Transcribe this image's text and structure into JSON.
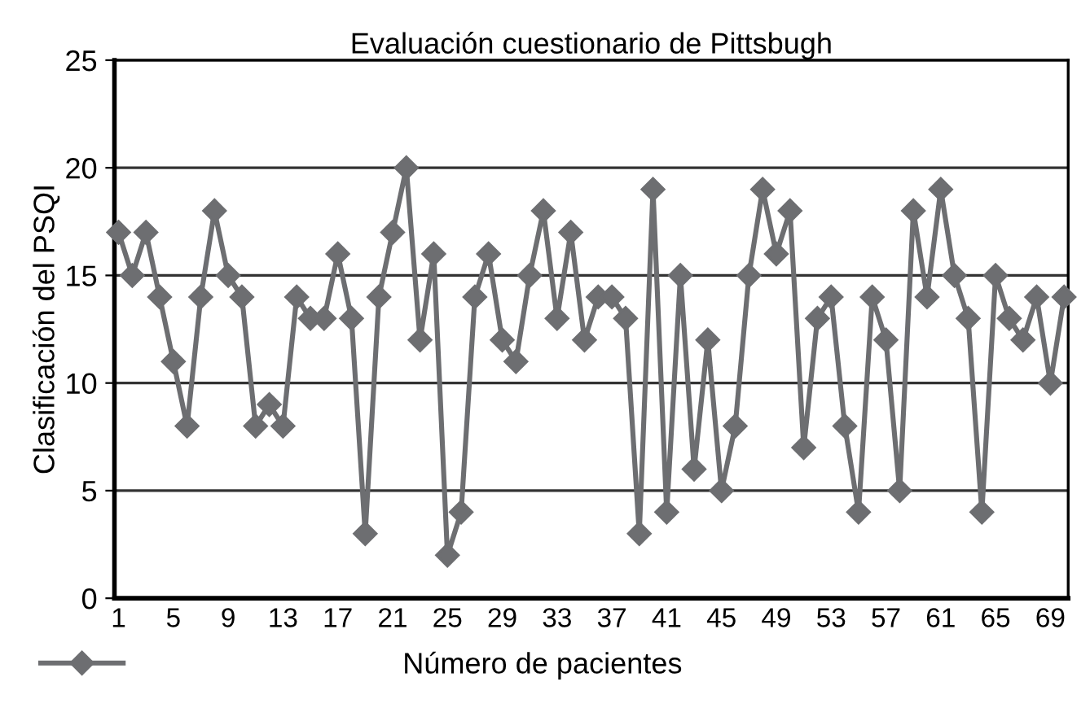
{
  "chart_data": {
    "type": "line",
    "title": "Evaluación cuestionario de Pittsbugh",
    "ylabel": "Clasificación del PSQI",
    "categories": [
      "1",
      null,
      null,
      null,
      "5",
      null,
      null,
      null,
      "9",
      null,
      null,
      null,
      "13",
      null,
      null,
      null,
      "17",
      null,
      null,
      null,
      "21",
      null,
      null,
      null,
      "25",
      null,
      null,
      null,
      "29",
      null,
      null,
      null,
      "33",
      null,
      null,
      null,
      "37",
      null,
      null,
      null,
      "41",
      null,
      null,
      null,
      "45",
      null,
      null,
      null,
      "49",
      null,
      null,
      null,
      "53",
      null,
      null,
      null,
      "57",
      null,
      null,
      null,
      "61",
      null,
      null,
      null,
      "65",
      null,
      null,
      null,
      "69",
      null
    ],
    "series": [
      {
        "name": "Número de pacientes",
        "color": "#6d6e71",
        "values": [
          17,
          15,
          17,
          14,
          11,
          8,
          14,
          18,
          15,
          14,
          8,
          9,
          8,
          14,
          13,
          13,
          16,
          13,
          3,
          14,
          17,
          20,
          12,
          16,
          2,
          4,
          14,
          16,
          12,
          11,
          15,
          18,
          13,
          17,
          12,
          14,
          14,
          13,
          3,
          19,
          4,
          15,
          6,
          12,
          5,
          8,
          15,
          19,
          16,
          18,
          7,
          13,
          14,
          8,
          4,
          14,
          12,
          5,
          18,
          14,
          19,
          15,
          13,
          4,
          15,
          13,
          12,
          14,
          10,
          14
        ]
      }
    ],
    "ylim": [
      0,
      25
    ],
    "yticks": [
      0,
      5,
      10,
      15,
      20,
      25
    ],
    "grid": "y",
    "legend": "bottom",
    "marker": "diamond",
    "line_style": "solid"
  }
}
